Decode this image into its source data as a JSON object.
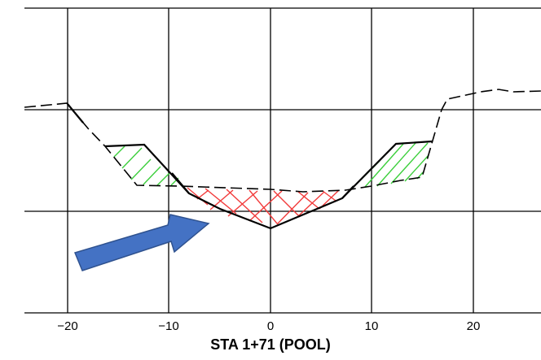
{
  "caption": "STA 1+71 (POOL)",
  "x_ticks": [
    "−20",
    "−10",
    "0",
    "10",
    "20"
  ],
  "colors": {
    "fill_hatch": "#3ccf3c",
    "cut_hatch": "#f23b3b",
    "arrow_fill": "#4472c4",
    "arrow_stroke": "#2f528f",
    "line": "#000000"
  },
  "chart_data": {
    "type": "cross-section",
    "title": "STA 1+71 (POOL)",
    "xlim": [
      -24,
      26
    ],
    "x_ticks": [
      -20,
      -10,
      0,
      10,
      20
    ],
    "ground_existing": [
      [
        -24,
        2.5
      ],
      [
        -20,
        2.6
      ],
      [
        -16.5,
        1.1
      ],
      [
        -13,
        0.25
      ],
      [
        0,
        0.2
      ],
      [
        3,
        0.2
      ],
      [
        7.5,
        0.25
      ],
      [
        13,
        0.3
      ],
      [
        17,
        1.1
      ],
      [
        17.5,
        2.1
      ],
      [
        21,
        2.25
      ],
      [
        26,
        2.2
      ]
    ],
    "design_section": [
      [
        -16.5,
        1.1
      ],
      [
        -12.5,
        1.1
      ],
      [
        -8,
        0.35
      ],
      [
        -5,
        0.1
      ],
      [
        0,
        -0.3
      ],
      [
        7,
        0.2
      ],
      [
        12.5,
        1.1
      ],
      [
        16,
        1.1
      ]
    ],
    "fill_areas": [
      "left",
      "right"
    ],
    "cut_area": "center"
  },
  "annotation": {
    "arrow_icon": "right-up-arrow"
  }
}
